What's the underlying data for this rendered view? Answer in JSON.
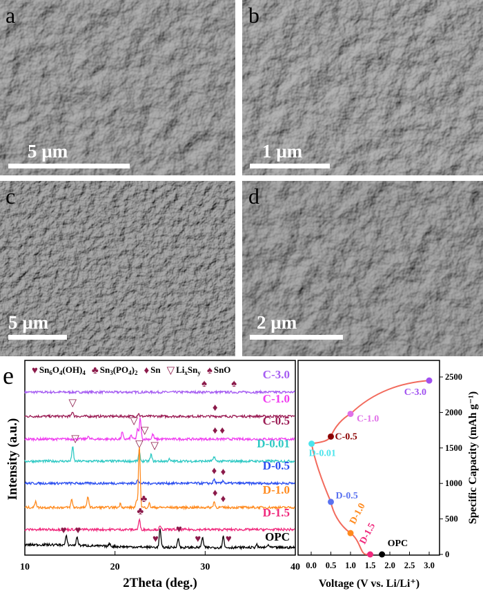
{
  "sem_panels": [
    {
      "letter": "a",
      "scale_bar": "5 µm",
      "tone": "#8a8a8a"
    },
    {
      "letter": "b",
      "scale_bar": "1 µm",
      "tone": "#8f8f8f"
    },
    {
      "letter": "c",
      "scale_bar": "5 µm",
      "tone": "#7e7e7e"
    },
    {
      "letter": "d",
      "scale_bar": "2 µm",
      "tone": "#838383"
    }
  ],
  "chart_data": [
    {
      "type": "line",
      "panel_letter": "e",
      "xlabel": "2Theta (deg.)",
      "ylabel": "Intensity (a.u.)",
      "xlim": [
        10,
        40
      ],
      "xticks": [
        "10",
        "20",
        "30",
        "40"
      ],
      "legend": [
        {
          "symbol": "♥",
          "parts": [
            [
              "Sn",
              ""
            ],
            [
              "6",
              "s"
            ],
            [
              "O",
              ""
            ],
            [
              "4",
              "s"
            ],
            [
              "(OH)",
              ""
            ],
            [
              "4",
              "s"
            ]
          ]
        },
        {
          "symbol": "♣",
          "parts": [
            [
              "Sn",
              ""
            ],
            [
              "3",
              "s"
            ],
            [
              "(PO",
              ""
            ],
            [
              "4",
              "s"
            ],
            [
              ")",
              ""
            ],
            [
              "2",
              "s"
            ]
          ]
        },
        {
          "symbol": "♦",
          "parts": [
            [
              "Sn",
              ""
            ]
          ]
        },
        {
          "symbol": "▽",
          "parts": [
            [
              "Li",
              ""
            ],
            [
              "x",
              "s"
            ],
            [
              "Sn",
              ""
            ],
            [
              "y",
              "s"
            ]
          ]
        },
        {
          "symbol": "♠",
          "parts": [
            [
              "SnO",
              ""
            ]
          ]
        }
      ],
      "marker_color": "#8b1a4a",
      "series": [
        {
          "name": "C-3.0",
          "trace_color": "#a55cf2",
          "label_color": "#a55cf2",
          "peaks": [],
          "markers": [
            [
              "♠",
              29.9
            ],
            [
              "♠",
              33.2
            ]
          ]
        },
        {
          "name": "C-1.0",
          "trace_color": "#9b1d55",
          "label_color": "#f03cf0",
          "peaks": [
            [
              15.3,
              0.5
            ],
            [
              22.6,
              0.3
            ]
          ],
          "markers": [
            [
              "▽",
              15.3
            ],
            [
              "♦",
              31.1
            ]
          ]
        },
        {
          "name": "C-0.5",
          "trace_color": "#f03cf0",
          "label_color": "#9b1d55",
          "peaks": [
            [
              20.8,
              0.7
            ],
            [
              21.8,
              0.4
            ],
            [
              22.5,
              1.0
            ],
            [
              22.8,
              2.2
            ],
            [
              24.2,
              0.5
            ],
            [
              17.0,
              0.3
            ]
          ],
          "markers": [
            [
              "▽",
              22.1
            ],
            [
              "▽",
              23.3
            ],
            [
              "♦",
              31.1
            ],
            [
              "♦",
              31.9
            ]
          ]
        },
        {
          "name": "D-0.01",
          "trace_color": "#2ec9c4",
          "label_color": "#2ec9c4",
          "peaks": [
            [
              15.3,
              1.5
            ],
            [
              22.7,
              0.9
            ],
            [
              24.0,
              0.7
            ],
            [
              31.0,
              0.5
            ],
            [
              26.0,
              0.2
            ]
          ],
          "markers": [
            [
              "▽",
              15.6
            ],
            [
              "▽",
              22.7
            ],
            [
              "▽",
              24.4
            ]
          ]
        },
        {
          "name": "D-0.5",
          "trace_color": "#2a4ef0",
          "label_color": "#2a4ef0",
          "peaks": [
            [
              22.5,
              0.4
            ],
            [
              31.0,
              0.4
            ],
            [
              32.0,
              0.3
            ]
          ],
          "markers": [
            [
              "♦",
              31.0
            ],
            [
              "♦",
              32.0
            ]
          ]
        },
        {
          "name": "D-1.0",
          "trace_color": "#ff8a1e",
          "label_color": "#ff8a1e",
          "peaks": [
            [
              11.2,
              0.7
            ],
            [
              15.2,
              0.8
            ],
            [
              17.0,
              1.2
            ],
            [
              20.6,
              0.4
            ],
            [
              22.4,
              0.6
            ],
            [
              22.7,
              6.5
            ],
            [
              23.8,
              0.4
            ],
            [
              31.0,
              0.6
            ]
          ],
          "markers": [
            [
              "♣",
              23.2
            ],
            [
              "♦",
              31.1
            ],
            [
              "♦",
              32.0
            ]
          ]
        },
        {
          "name": "D-1.5",
          "trace_color": "#f0287c",
          "label_color": "#f0287c",
          "peaks": [
            [
              22.7,
              1.0
            ],
            [
              25.0,
              0.3
            ]
          ],
          "markers": [
            [
              "♣",
              22.8
            ]
          ]
        },
        {
          "name": "OPC",
          "trace_color": "#000000",
          "label_color": "#000000",
          "peaks": [
            [
              14.6,
              0.9
            ],
            [
              15.8,
              0.9
            ],
            [
              19.4,
              0.3
            ],
            [
              25.0,
              1.9
            ],
            [
              27.0,
              1.0
            ],
            [
              29.7,
              1.1
            ],
            [
              32.0,
              1.2
            ],
            [
              35.7,
              0.3
            ],
            [
              37.0,
              0.3
            ]
          ],
          "markers": [
            [
              "♥",
              14.3
            ],
            [
              "♥",
              15.9
            ],
            [
              "♥",
              24.5
            ],
            [
              "♥",
              27.1
            ],
            [
              "♥",
              29.2
            ],
            [
              "♥",
              32.6
            ]
          ]
        }
      ]
    },
    {
      "type": "line",
      "xlabel": "Voltage (V vs. Li/Li⁺)",
      "ylabel": "Specific Capacity (mAh g⁻¹)",
      "xlim": [
        0,
        3.0
      ],
      "ylim": [
        0,
        2500
      ],
      "xticks": [
        "0.0",
        "0.5",
        "1.0",
        "1.5",
        "2.0",
        "2.5",
        "3.0"
      ],
      "yticks": [
        "0",
        "500",
        "1000",
        "1500",
        "2000",
        "2500"
      ],
      "line_color": "#f26a5c",
      "points": [
        {
          "label": "OPC",
          "x": 1.8,
          "y": 0,
          "color": "#000000"
        },
        {
          "label": "D-1.5",
          "x": 1.5,
          "y": 0,
          "color": "#f0287c"
        },
        {
          "label": "D-1.0",
          "x": 1.0,
          "y": 300,
          "color": "#ff8a1e"
        },
        {
          "label": "D-0.5",
          "x": 0.5,
          "y": 740,
          "color": "#5a72f0"
        },
        {
          "label": "D-0.01",
          "x": 0.01,
          "y": 1560,
          "color": "#4ae4ec"
        },
        {
          "label": "C-0.5",
          "x": 0.5,
          "y": 1660,
          "color": "#8b0000"
        },
        {
          "label": "C-1.0",
          "x": 1.0,
          "y": 1980,
          "color": "#e070e8"
        },
        {
          "label": "C-3.0",
          "x": 3.0,
          "y": 2450,
          "color": "#a050f0"
        }
      ]
    }
  ]
}
